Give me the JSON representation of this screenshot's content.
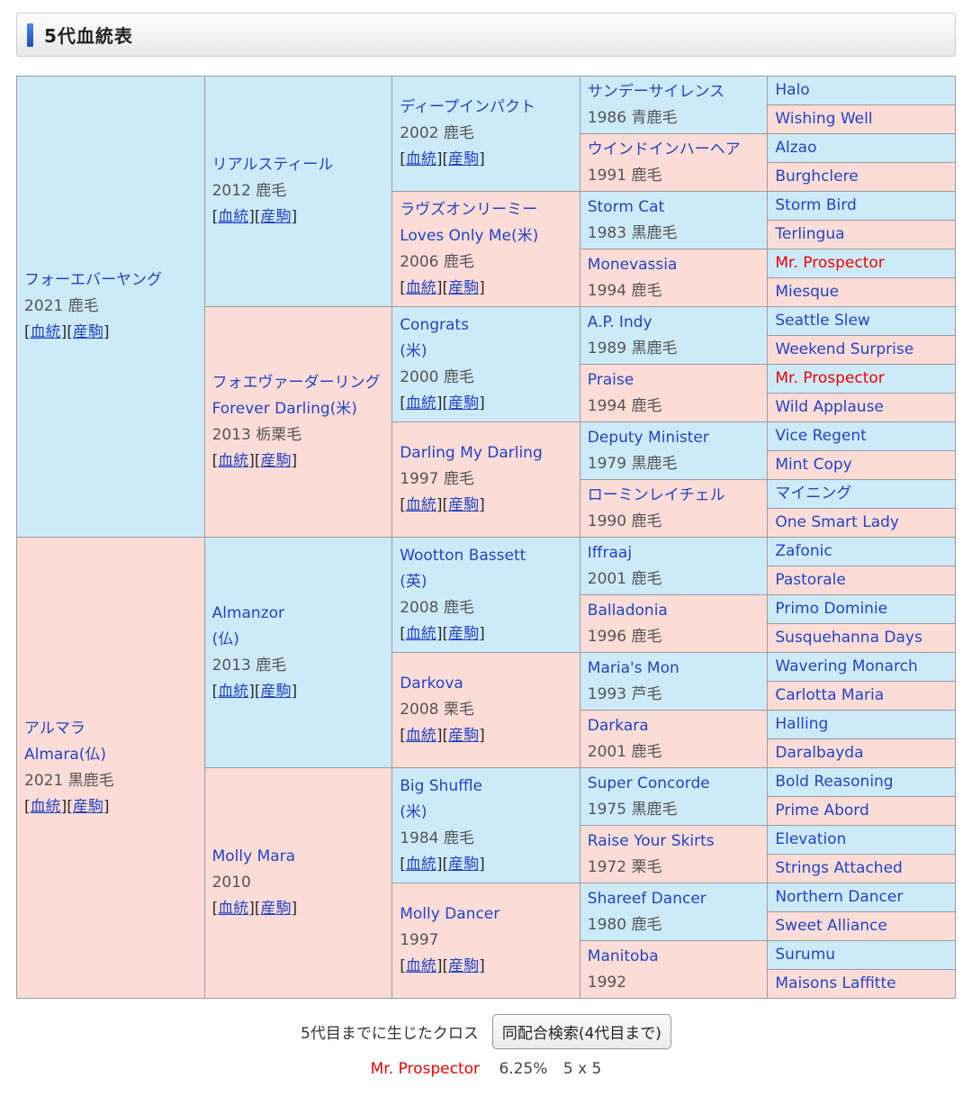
{
  "header": {
    "title": "5代血統表"
  },
  "colors": {
    "male_cell_bg": "#cdeaf8",
    "female_cell_bg": "#fbdcd7",
    "horse_link_blue": "#2244c4",
    "cross_red": "#ee0000",
    "accent_bar_blue": "#1c4fc0",
    "cell_border": "#9b9b9b"
  },
  "pedigree": {
    "link_labels": {
      "blood": "血統",
      "progeny": "産駒",
      "bracket_open": "[",
      "bracket_close": "]"
    },
    "generations": [
      [
        {
          "name": [
            "フォーエバーヤング"
          ],
          "meta": "2021 鹿毛",
          "links": true
        },
        {
          "name": [
            "アルマラ",
            "Almara(仏)"
          ],
          "meta": "2021 黒鹿毛",
          "links": true
        }
      ],
      [
        {
          "name": [
            "リアルスティール"
          ],
          "meta": "2012 鹿毛",
          "links": true
        },
        {
          "name": [
            "フォエヴァーダーリング",
            "Forever Darling(米)"
          ],
          "meta": "2013 栃栗毛",
          "links": true
        },
        {
          "name": [
            "Almanzor",
            "(仏)"
          ],
          "meta": "2013 鹿毛",
          "links": true
        },
        {
          "name": [
            "Molly Mara"
          ],
          "meta": "2010",
          "links": true
        }
      ],
      [
        {
          "name": [
            "ディープインパクト"
          ],
          "meta": "2002 鹿毛",
          "links": true
        },
        {
          "name": [
            "ラヴズオンリーミー",
            "Loves Only Me(米)"
          ],
          "meta": "2006 鹿毛",
          "links": true
        },
        {
          "name": [
            "Congrats",
            "(米)"
          ],
          "meta": "2000 鹿毛",
          "links": true
        },
        {
          "name": [
            "Darling My Darling"
          ],
          "meta": "1997 鹿毛",
          "links": true
        },
        {
          "name": [
            "Wootton Bassett",
            "(英)"
          ],
          "meta": "2008 鹿毛",
          "links": true
        },
        {
          "name": [
            "Darkova"
          ],
          "meta": "2008 栗毛",
          "links": true
        },
        {
          "name": [
            "Big Shuffle",
            "(米)"
          ],
          "meta": "1984 鹿毛",
          "links": true
        },
        {
          "name": [
            "Molly Dancer"
          ],
          "meta": "1997",
          "links": true
        }
      ],
      [
        {
          "name": [
            "サンデーサイレンス"
          ],
          "meta": "1986 青鹿毛"
        },
        {
          "name": [
            "ウインドインハーヘア"
          ],
          "meta": "1991 鹿毛"
        },
        {
          "name": [
            "Storm Cat"
          ],
          "meta": "1983 黒鹿毛"
        },
        {
          "name": [
            "Monevassia"
          ],
          "meta": "1994 鹿毛"
        },
        {
          "name": [
            "A.P. Indy"
          ],
          "meta": "1989 黒鹿毛"
        },
        {
          "name": [
            "Praise"
          ],
          "meta": "1994 鹿毛"
        },
        {
          "name": [
            "Deputy Minister"
          ],
          "meta": "1979 黒鹿毛"
        },
        {
          "name": [
            "ローミンレイチェル"
          ],
          "meta": "1990 鹿毛"
        },
        {
          "name": [
            "Iffraaj"
          ],
          "meta": "2001 鹿毛"
        },
        {
          "name": [
            "Balladonia"
          ],
          "meta": "1996 鹿毛"
        },
        {
          "name": [
            "Maria's Mon"
          ],
          "meta": "1993 芦毛"
        },
        {
          "name": [
            "Darkara"
          ],
          "meta": "2001 鹿毛"
        },
        {
          "name": [
            "Super Concorde"
          ],
          "meta": "1975 黒鹿毛"
        },
        {
          "name": [
            "Raise Your Skirts"
          ],
          "meta": "1972 栗毛"
        },
        {
          "name": [
            "Shareef Dancer"
          ],
          "meta": "1980 鹿毛"
        },
        {
          "name": [
            "Manitoba"
          ],
          "meta": "1992"
        }
      ],
      [
        {
          "name": [
            "Halo"
          ]
        },
        {
          "name": [
            "Wishing Well"
          ]
        },
        {
          "name": [
            "Alzao"
          ]
        },
        {
          "name": [
            "Burghclere"
          ]
        },
        {
          "name": [
            "Storm Bird"
          ]
        },
        {
          "name": [
            "Terlingua"
          ]
        },
        {
          "name": [
            "Mr. Prospector"
          ],
          "red": true
        },
        {
          "name": [
            "Miesque"
          ]
        },
        {
          "name": [
            "Seattle Slew"
          ]
        },
        {
          "name": [
            "Weekend Surprise"
          ]
        },
        {
          "name": [
            "Mr. Prospector"
          ],
          "red": true
        },
        {
          "name": [
            "Wild Applause"
          ]
        },
        {
          "name": [
            "Vice Regent"
          ]
        },
        {
          "name": [
            "Mint Copy"
          ]
        },
        {
          "name": [
            "マイニング"
          ]
        },
        {
          "name": [
            "One Smart Lady"
          ]
        },
        {
          "name": [
            "Zafonic"
          ]
        },
        {
          "name": [
            "Pastorale"
          ]
        },
        {
          "name": [
            "Primo Dominie"
          ]
        },
        {
          "name": [
            "Susquehanna Days"
          ]
        },
        {
          "name": [
            "Wavering Monarch"
          ]
        },
        {
          "name": [
            "Carlotta Maria"
          ]
        },
        {
          "name": [
            "Halling"
          ]
        },
        {
          "name": [
            "Daralbayda"
          ]
        },
        {
          "name": [
            "Bold Reasoning"
          ]
        },
        {
          "name": [
            "Prime Abord"
          ]
        },
        {
          "name": [
            "Elevation"
          ]
        },
        {
          "name": [
            "Strings Attached"
          ]
        },
        {
          "name": [
            "Northern Dancer"
          ]
        },
        {
          "name": [
            "Sweet Alliance"
          ]
        },
        {
          "name": [
            "Surumu"
          ]
        },
        {
          "name": [
            "Maisons Laffitte"
          ]
        }
      ]
    ]
  },
  "footer": {
    "cross_label": "5代目までに生じたクロス",
    "search_button": "同配合検索(4代目まで)",
    "cross": {
      "name": "Mr. Prospector",
      "percentage": "6.25%",
      "pattern": "5 x 5"
    }
  }
}
